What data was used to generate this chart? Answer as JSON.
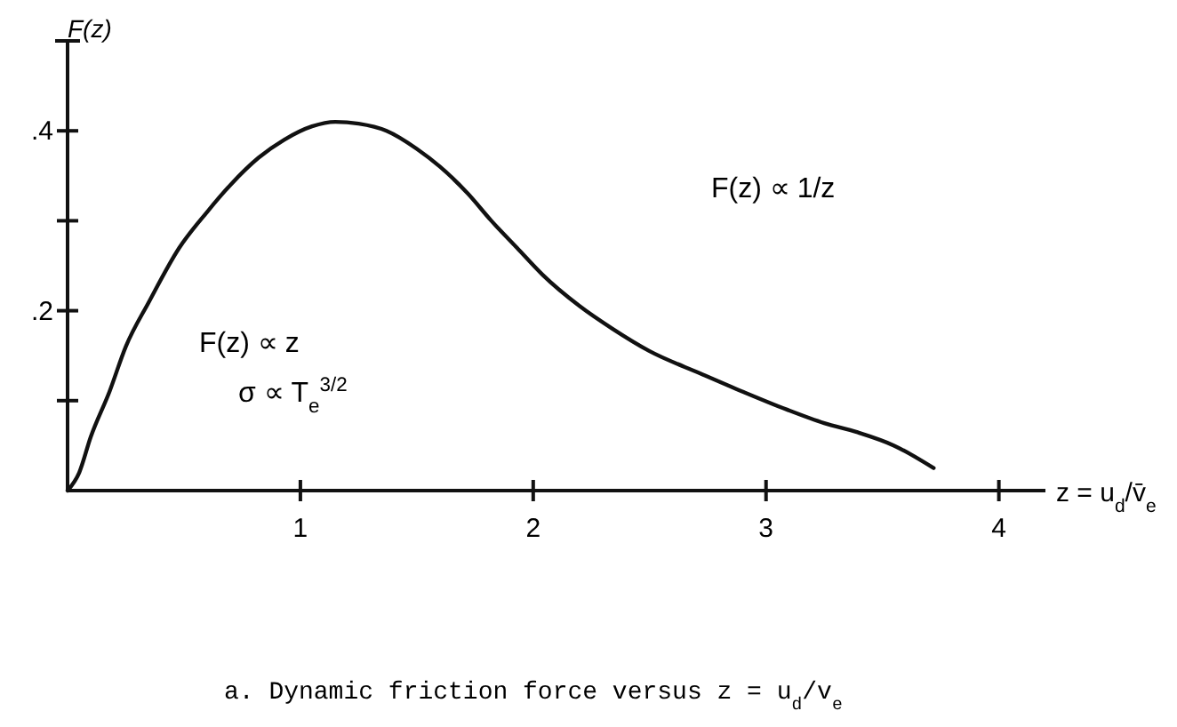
{
  "chart_data": {
    "type": "line",
    "ylabel": "F(z)",
    "xlabel": "z = u$_{d}$/v̄$_{e}$",
    "xlim": [
      0,
      4.2
    ],
    "ylim": [
      0,
      0.5
    ],
    "xticks": [
      1,
      2,
      3,
      4
    ],
    "yticks": [
      {
        "value": 0.1,
        "label": null
      },
      {
        "value": 0.2,
        "label": ".2"
      },
      {
        "value": 0.3,
        "label": null
      },
      {
        "value": 0.4,
        "label": ".4"
      }
    ],
    "x": [
      0,
      0.05,
      0.1,
      0.18,
      0.25,
      0.35,
      0.48,
      0.6,
      0.7,
      0.82,
      0.93,
      1.05,
      1.15,
      1.25,
      1.37,
      1.5,
      1.6,
      1.72,
      1.82,
      1.93,
      2.04,
      2.2,
      2.34,
      2.5,
      2.72,
      2.9,
      3.09,
      3.25,
      3.39,
      3.55,
      3.72
    ],
    "series": [
      {
        "color": "#111111",
        "values": [
          0,
          0.02,
          0.06,
          0.11,
          0.16,
          0.21,
          0.27,
          0.31,
          0.34,
          0.37,
          0.39,
          0.405,
          0.41,
          0.408,
          0.4,
          0.38,
          0.36,
          0.33,
          0.3,
          0.27,
          0.24,
          0.205,
          0.18,
          0.155,
          0.13,
          0.11,
          0.09,
          0.075,
          0.065,
          0.05,
          0.025
        ]
      }
    ],
    "annotations": [
      "F(z) ∝ 1/z",
      "F(z) ∝ z",
      "σ ∝ T$_{e}$$^{3/2}$",
      "a.  Dynamic friction force versus z = u$_{d}$/v$_{e}$"
    ],
    "line_style": "solid"
  }
}
